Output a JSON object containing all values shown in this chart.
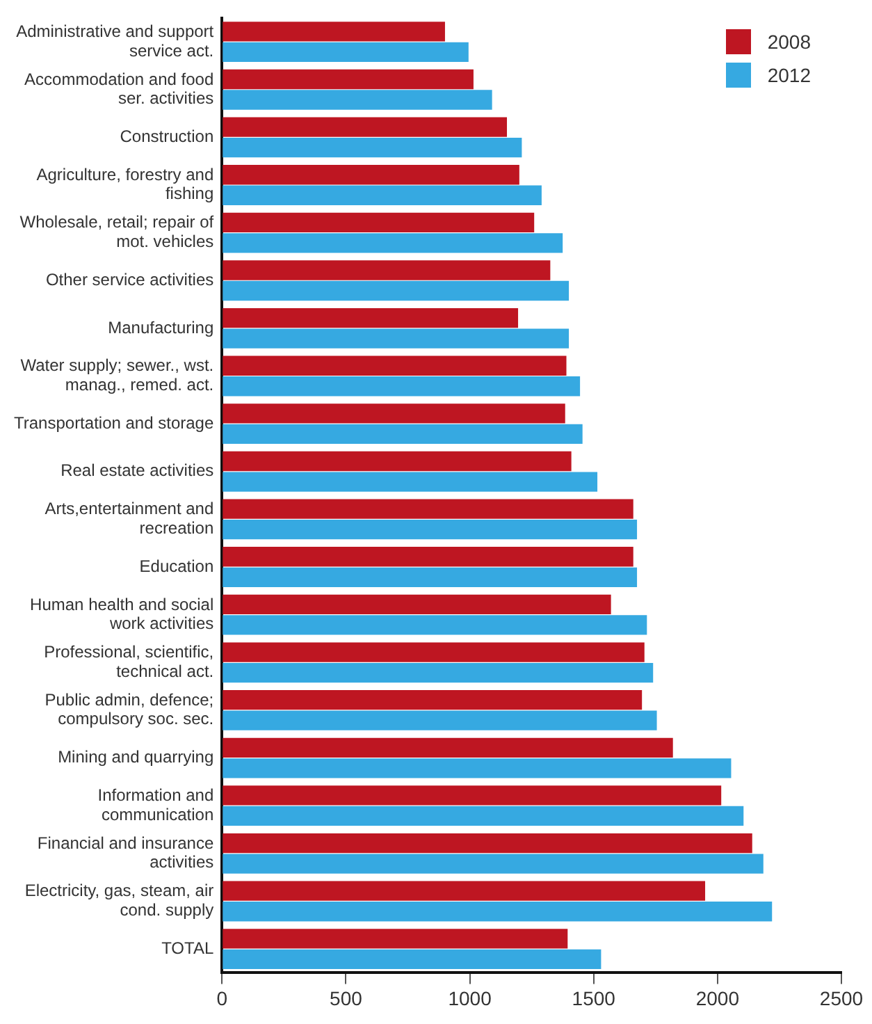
{
  "chart_data": {
    "type": "bar",
    "orientation": "horizontal",
    "categories": [
      "Administrative and support service act.",
      "Accommodation and food ser. activities",
      "Construction",
      "Agriculture, forestry and fishing",
      "Wholesale, retail; repair of mot. vehicles",
      "Other service activities",
      "Manufacturing",
      "Water supply; sewer., wst. manag., remed. act.",
      "Transportation and storage",
      "Real estate activities",
      "Arts,entertainment and recreation",
      "Education",
      "Human health and social work activities",
      "Professional, scientific, technical act.",
      "Public admin, defence; compulsory soc. sec.",
      "Mining and quarrying",
      "Information and communication",
      "Financial and insurance activities",
      "Electricity, gas, steam, air cond. supply",
      "TOTAL"
    ],
    "series": [
      {
        "name": "2008",
        "color": "#be1622",
        "values": [
          900,
          1015,
          1150,
          1200,
          1260,
          1325,
          1195,
          1390,
          1385,
          1410,
          1660,
          1660,
          1570,
          1705,
          1695,
          1820,
          2015,
          2140,
          1950,
          1395
        ]
      },
      {
        "name": "2012",
        "color": "#36a9e1",
        "values": [
          995,
          1090,
          1210,
          1290,
          1375,
          1400,
          1400,
          1445,
          1455,
          1515,
          1675,
          1675,
          1715,
          1740,
          1755,
          2055,
          2105,
          2185,
          2220,
          1530
        ]
      }
    ],
    "xlim": [
      0,
      2500
    ],
    "xticks": [
      0,
      500,
      1000,
      1500,
      2000,
      2500
    ],
    "grid": false,
    "legend": "top right"
  }
}
